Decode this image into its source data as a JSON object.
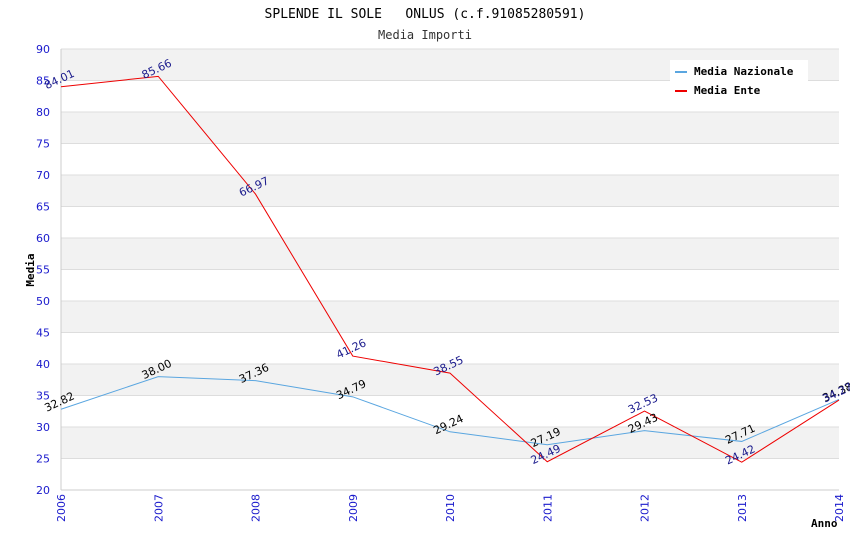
{
  "chart_data": {
    "type": "line",
    "title": "SPLENDE IL SOLE   ONLUS (c.f.91085280591)",
    "subtitle": "Media Importi",
    "xlabel": "Anno",
    "ylabel": "Media",
    "categories": [
      "2006",
      "2007",
      "2008",
      "2009",
      "2010",
      "2011",
      "2012",
      "2013",
      "2014"
    ],
    "ylim": [
      20,
      90
    ],
    "yticks": [
      20,
      25,
      30,
      35,
      40,
      45,
      50,
      55,
      60,
      65,
      70,
      75,
      80,
      85,
      90
    ],
    "grid": true,
    "legend_position": "top-right",
    "series": [
      {
        "name": "Media Nazionale",
        "color": "#5aa6e0",
        "label_color": "#000000",
        "values": [
          32.82,
          38.0,
          37.36,
          34.79,
          29.24,
          27.19,
          29.43,
          27.71,
          34.38
        ],
        "labels": [
          "32.82",
          "38.00",
          "37.36",
          "34.79",
          "29.24",
          "27.19",
          "29.43",
          "27.71",
          "34.38"
        ]
      },
      {
        "name": "Media Ente",
        "color": "#ee0000",
        "label_color": "#1a1a8c",
        "values": [
          84.01,
          85.66,
          66.97,
          41.26,
          38.55,
          24.49,
          32.53,
          24.42,
          34.27
        ],
        "labels": [
          "84.01",
          "85.66",
          "66.97",
          "41.26",
          "38.55",
          "24.49",
          "32.53",
          "24.42",
          "34.27"
        ]
      }
    ],
    "colors": {
      "band": "#f2f2f2",
      "gridline": "#dddddd",
      "tick_label": "#1a1acc"
    }
  }
}
